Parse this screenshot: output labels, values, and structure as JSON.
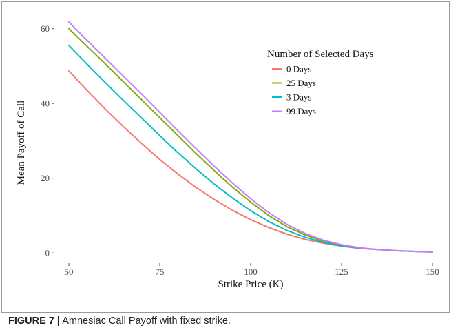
{
  "chart_data": {
    "type": "line",
    "xlabel": "Strike Price (K)",
    "ylabel": "Mean Payoff of Call",
    "xlim": [
      50,
      150
    ],
    "ylim": [
      -2,
      64
    ],
    "xticks": [
      50,
      75,
      100,
      125,
      150
    ],
    "yticks": [
      0,
      20,
      40,
      60
    ],
    "grid": false,
    "legend": {
      "title": "Number of Selected Days",
      "position": "top-right",
      "entries": [
        "0 Days",
        "25 Days",
        "3 Days",
        "99 Days"
      ]
    },
    "x": [
      50,
      55,
      60,
      65,
      70,
      75,
      80,
      85,
      90,
      95,
      100,
      105,
      110,
      115,
      120,
      125,
      130,
      135,
      140,
      145,
      150
    ],
    "series": [
      {
        "name": "0 Days",
        "color": "#f8766d",
        "values": [
          48.7,
          43.5,
          38.5,
          33.8,
          29.3,
          25.0,
          21.1,
          17.5,
          14.3,
          11.4,
          8.9,
          6.8,
          5.0,
          3.6,
          2.6,
          1.8,
          1.2,
          0.9,
          0.6,
          0.4,
          0.2
        ]
      },
      {
        "name": "25 Days",
        "color": "#7cae00",
        "values": [
          60.0,
          55.3,
          50.6,
          45.8,
          41.0,
          36.2,
          31.4,
          26.6,
          22.0,
          17.6,
          13.6,
          10.0,
          7.0,
          4.8,
          3.1,
          2.0,
          1.3,
          0.9,
          0.6,
          0.4,
          0.3
        ]
      },
      {
        "name": "3 Days",
        "color": "#00bfc4",
        "values": [
          55.5,
          50.5,
          45.6,
          40.8,
          36.1,
          31.4,
          26.8,
          22.5,
          18.4,
          14.7,
          11.3,
          8.4,
          6.0,
          4.2,
          2.8,
          1.9,
          1.3,
          0.9,
          0.6,
          0.4,
          0.3
        ]
      },
      {
        "name": "99 Days",
        "color": "#c77cff",
        "values": [
          61.8,
          56.9,
          52.1,
          47.3,
          42.5,
          37.6,
          32.7,
          27.9,
          23.2,
          18.7,
          14.5,
          10.8,
          7.6,
          5.2,
          3.4,
          2.2,
          1.4,
          0.9,
          0.6,
          0.4,
          0.3
        ]
      }
    ]
  },
  "caption": {
    "label": "FIGURE 7 |",
    "text": " Amnesiac Call Payoff with fixed strike."
  }
}
